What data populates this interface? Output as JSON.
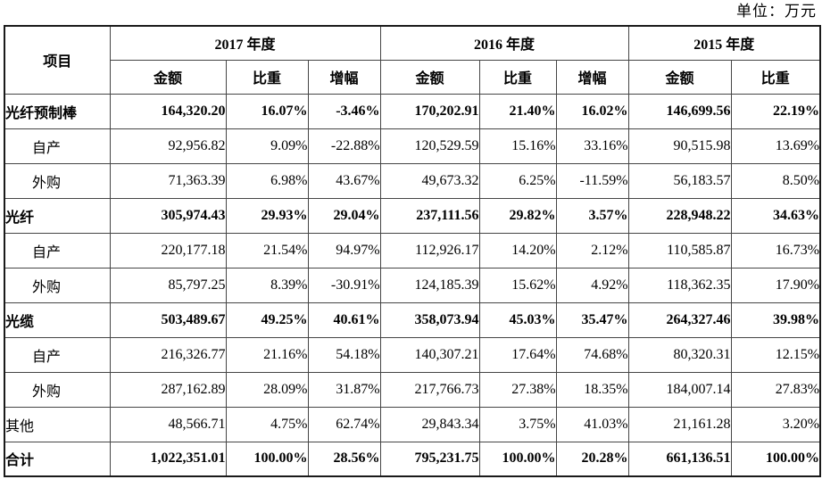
{
  "unit_label": "单位：万元",
  "table": {
    "item_header": "项目",
    "year_groups": [
      {
        "label": "2017 年度",
        "columns": [
          "金额",
          "比重",
          "增幅"
        ]
      },
      {
        "label": "2016 年度",
        "columns": [
          "金额",
          "比重",
          "增幅"
        ]
      },
      {
        "label": "2015 年度",
        "columns": [
          "金额",
          "比重"
        ]
      }
    ],
    "rows": [
      {
        "label": "光纤预制棒",
        "bold": true,
        "indent": false,
        "values": [
          "164,320.20",
          "16.07%",
          "-3.46%",
          "170,202.91",
          "21.40%",
          "16.02%",
          "146,699.56",
          "22.19%"
        ]
      },
      {
        "label": "自产",
        "bold": false,
        "indent": true,
        "values": [
          "92,956.82",
          "9.09%",
          "-22.88%",
          "120,529.59",
          "15.16%",
          "33.16%",
          "90,515.98",
          "13.69%"
        ]
      },
      {
        "label": "外购",
        "bold": false,
        "indent": true,
        "values": [
          "71,363.39",
          "6.98%",
          "43.67%",
          "49,673.32",
          "6.25%",
          "-11.59%",
          "56,183.57",
          "8.50%"
        ]
      },
      {
        "label": "光纤",
        "bold": true,
        "indent": false,
        "values": [
          "305,974.43",
          "29.93%",
          "29.04%",
          "237,111.56",
          "29.82%",
          "3.57%",
          "228,948.22",
          "34.63%"
        ]
      },
      {
        "label": "自产",
        "bold": false,
        "indent": true,
        "values": [
          "220,177.18",
          "21.54%",
          "94.97%",
          "112,926.17",
          "14.20%",
          "2.12%",
          "110,585.87",
          "16.73%"
        ]
      },
      {
        "label": "外购",
        "bold": false,
        "indent": true,
        "values": [
          "85,797.25",
          "8.39%",
          "-30.91%",
          "124,185.39",
          "15.62%",
          "4.92%",
          "118,362.35",
          "17.90%"
        ]
      },
      {
        "label": "光缆",
        "bold": true,
        "indent": false,
        "values": [
          "503,489.67",
          "49.25%",
          "40.61%",
          "358,073.94",
          "45.03%",
          "35.47%",
          "264,327.46",
          "39.98%"
        ]
      },
      {
        "label": "自产",
        "bold": false,
        "indent": true,
        "values": [
          "216,326.77",
          "21.16%",
          "54.18%",
          "140,307.21",
          "17.64%",
          "74.68%",
          "80,320.31",
          "12.15%"
        ]
      },
      {
        "label": "外购",
        "bold": false,
        "indent": true,
        "values": [
          "287,162.89",
          "28.09%",
          "31.87%",
          "217,766.73",
          "27.38%",
          "18.35%",
          "184,007.14",
          "27.83%"
        ]
      },
      {
        "label": "其他",
        "bold": false,
        "indent": false,
        "values": [
          "48,566.71",
          "4.75%",
          "62.74%",
          "29,843.34",
          "3.75%",
          "41.03%",
          "21,161.28",
          "3.20%"
        ]
      },
      {
        "label": "合计",
        "bold": true,
        "indent": false,
        "values": [
          "1,022,351.01",
          "100.00%",
          "28.56%",
          "795,231.75",
          "100.00%",
          "20.28%",
          "661,136.51",
          "100.00%"
        ]
      }
    ]
  }
}
